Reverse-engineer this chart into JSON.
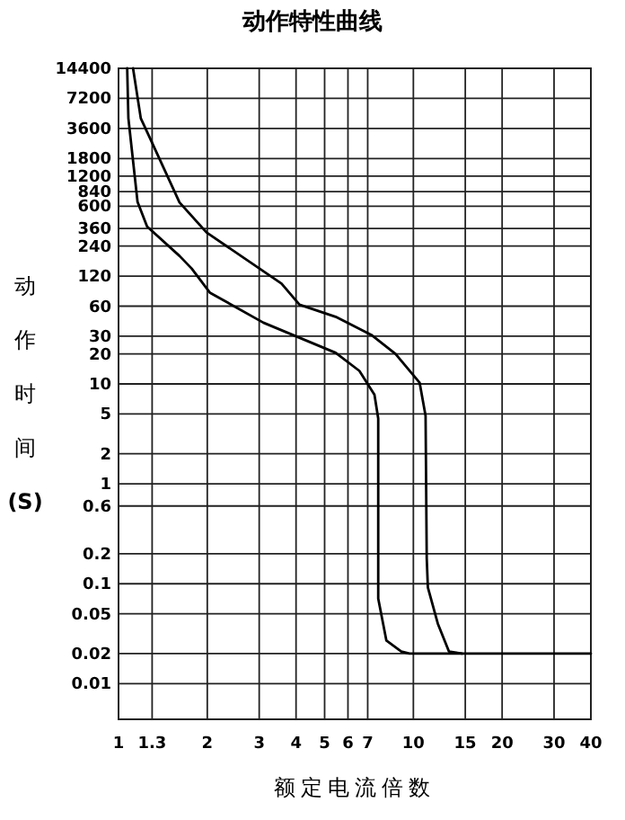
{
  "chart_data": {
    "type": "line",
    "title": "动作特性曲线",
    "xlabel": "额定电流倍数",
    "ylabel": "动作时间(S)",
    "log": "xy",
    "grid": true,
    "line_style": "solid",
    "xlim": [
      1,
      40
    ],
    "ylim": [
      0.0044,
      14400
    ],
    "xticks": [
      1,
      1.3,
      2,
      3,
      4,
      5,
      6,
      7,
      10,
      15,
      20,
      30,
      40
    ],
    "yticks": [
      14400,
      7200,
      3600,
      1800,
      1200,
      840,
      600,
      360,
      240,
      120,
      60,
      30,
      20,
      10,
      5,
      2,
      1,
      0.6,
      0.2,
      0.1,
      0.05,
      0.02,
      0.01
    ],
    "series": [
      {
        "color": "#000000",
        "x": [
          1.07,
          1.08,
          1.16,
          1.25,
          1.61,
          1.77,
          2.04,
          3.1,
          4.11,
          5.45,
          6.56,
          7.38,
          7.6,
          7.6,
          8.1,
          9.1,
          9.7,
          40
        ],
        "values": [
          14400,
          4550,
          664,
          376,
          191,
          143,
          82,
          41,
          29,
          20.5,
          13.5,
          7.8,
          4.5,
          0.071,
          0.027,
          0.021,
          0.02,
          0.02
        ]
      },
      {
        "color": "#000000",
        "x": [
          1.12,
          1.19,
          1.27,
          1.61,
          1.99,
          3.57,
          4.11,
          5.45,
          7.2,
          8.7,
          10.5,
          11,
          11.1,
          11.2,
          12.1,
          13.2,
          14.6
        ],
        "values": [
          14400,
          4550,
          3000,
          656,
          327,
          101,
          62,
          47,
          31,
          20,
          10.3,
          4.8,
          0.18,
          0.092,
          0.04,
          0.021,
          0.02
        ]
      }
    ]
  }
}
